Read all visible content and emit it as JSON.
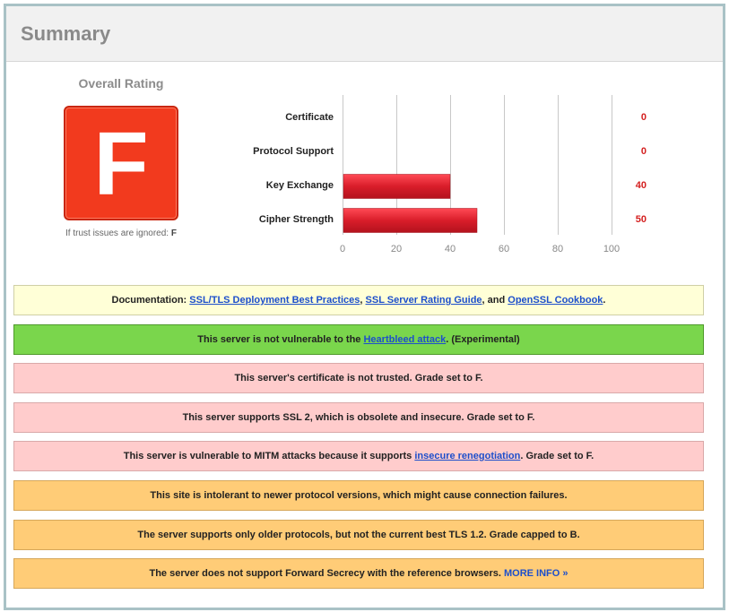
{
  "header": {
    "title": "Summary"
  },
  "overall": {
    "title": "Overall Rating",
    "grade": "F",
    "trust_note_prefix": "If trust issues are ignored:",
    "trust_note_grade": "F",
    "grade_color": "#f23a1e"
  },
  "chart_data": {
    "type": "bar",
    "categories": [
      "Certificate",
      "Protocol Support",
      "Key Exchange",
      "Cipher Strength"
    ],
    "values": [
      0,
      0,
      40,
      50
    ],
    "xlim": [
      0,
      100
    ],
    "xticks": [
      0,
      20,
      40,
      60,
      80,
      100
    ],
    "grid": true,
    "bar_color": "#d91d2a"
  },
  "notices": [
    {
      "type": "doc",
      "parts": [
        {
          "text": "Documentation: "
        },
        {
          "link": "SSL/TLS Deployment Best Practices"
        },
        {
          "text": ", "
        },
        {
          "link": "SSL Server Rating Guide"
        },
        {
          "text": ", and "
        },
        {
          "link": "OpenSSL Cookbook"
        },
        {
          "text": "."
        }
      ]
    },
    {
      "type": "green",
      "parts": [
        {
          "text": "This server is not vulnerable to the "
        },
        {
          "link": "Heartbleed attack"
        },
        {
          "text": ". (Experimental)"
        }
      ]
    },
    {
      "type": "red",
      "parts": [
        {
          "text": "This server's certificate is not trusted. Grade set to F."
        }
      ]
    },
    {
      "type": "red",
      "parts": [
        {
          "text": "This server supports SSL 2, which is obsolete and insecure. Grade set to F."
        }
      ]
    },
    {
      "type": "red",
      "parts": [
        {
          "text": "This server is vulnerable to MITM attacks because it supports "
        },
        {
          "link": "insecure renegotiation"
        },
        {
          "text": ". Grade set to F."
        }
      ]
    },
    {
      "type": "orange",
      "parts": [
        {
          "text": "This site is intolerant to newer protocol versions, which might cause connection failures."
        }
      ]
    },
    {
      "type": "orange",
      "parts": [
        {
          "text": "The server supports only older protocols, but not the current best TLS 1.2. Grade capped to B."
        }
      ]
    },
    {
      "type": "orange",
      "parts": [
        {
          "text": "The server does not support Forward Secrecy with the reference browsers.  "
        },
        {
          "link": "MORE INFO »",
          "plain": true
        }
      ]
    }
  ]
}
